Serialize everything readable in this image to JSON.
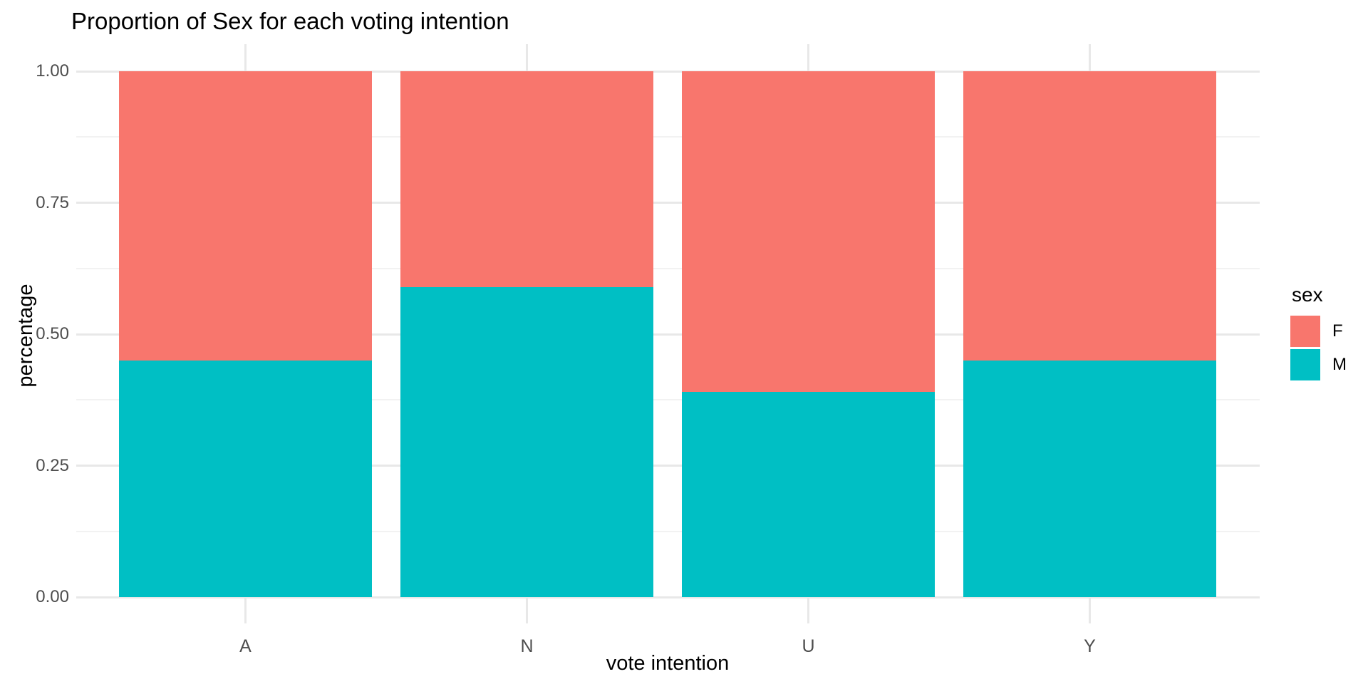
{
  "title": "Proportion of Sex for each voting intention",
  "axes": {
    "x_title": "vote intention",
    "y_title": "percentage"
  },
  "legend": {
    "title": "sex",
    "entries": [
      "F",
      "M"
    ]
  },
  "colors": {
    "F": "#F8766D",
    "M": "#00BFC4",
    "grid_major": "#e8e8e8",
    "grid_minor": "#f2f2f2",
    "tick_text": "#4d4d4d",
    "title_text": "#000000"
  },
  "chart_data": {
    "type": "bar",
    "subtype": "stacked-normalized",
    "title": "Proportion of Sex for each voting intention",
    "xlabel": "vote intention",
    "ylabel": "percentage",
    "categories": [
      "A",
      "N",
      "U",
      "Y"
    ],
    "series": [
      {
        "name": "M",
        "color": "#00BFC4",
        "values": [
          0.45,
          0.59,
          0.39,
          0.45
        ]
      },
      {
        "name": "F",
        "color": "#F8766D",
        "values": [
          0.55,
          0.41,
          0.61,
          0.55
        ]
      }
    ],
    "ylim": [
      0,
      1
    ],
    "yticks": [
      {
        "label": "0.00",
        "value": 0.0
      },
      {
        "label": "0.25",
        "value": 0.25
      },
      {
        "label": "0.50",
        "value": 0.5
      },
      {
        "label": "0.75",
        "value": 0.75
      },
      {
        "label": "1.00",
        "value": 1.0
      }
    ],
    "grid": "major+minor",
    "legend": {
      "title": "sex",
      "entries": [
        "F",
        "M"
      ],
      "position": "right"
    }
  }
}
